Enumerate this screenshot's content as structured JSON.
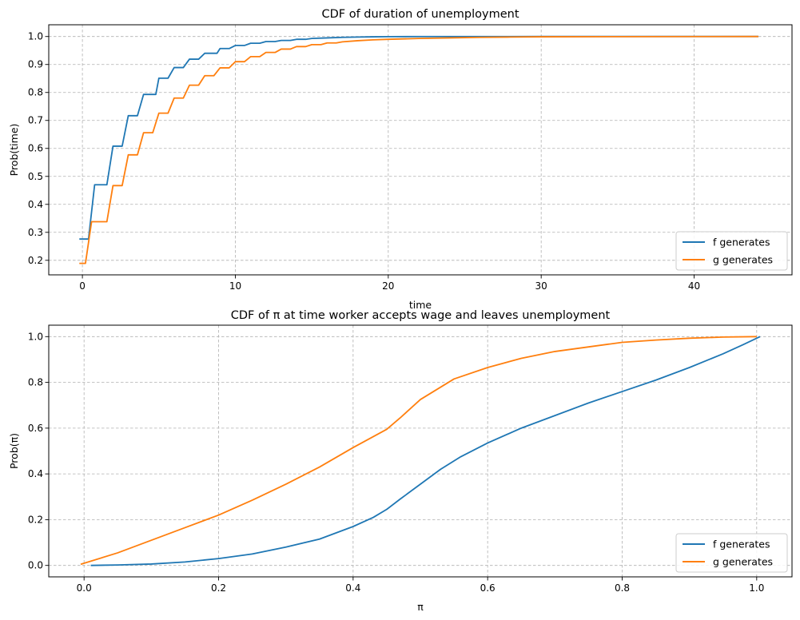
{
  "colors": {
    "f": "#1f77b4",
    "g": "#ff7f0e",
    "grid": "#b0b0b0"
  },
  "chart_data": [
    {
      "type": "line",
      "title": "CDF of duration of unemployment",
      "xlabel": "time",
      "ylabel": "Prob(time)",
      "xlim": [
        -2.2,
        46.4
      ],
      "ylim": [
        0.148,
        1.042
      ],
      "xticks": [
        0,
        10,
        20,
        30,
        40
      ],
      "xtick_labels": [
        "0",
        "10",
        "20",
        "30",
        "40"
      ],
      "yticks": [
        0.2,
        0.3,
        0.4,
        0.5,
        0.6,
        0.7,
        0.8,
        0.9,
        1.0
      ],
      "ytick_labels": [
        "0.2",
        "0.3",
        "0.4",
        "0.5",
        "0.6",
        "0.7",
        "0.8",
        "0.9",
        "1.0"
      ],
      "grid": true,
      "legend_position": "lower-right",
      "series": [
        {
          "name": "f generates",
          "color_key": "f",
          "x": [
            -0.2,
            0.4,
            0.8,
            1.6,
            2.0,
            2.6,
            3.0,
            3.6,
            4.0,
            4.8,
            5.0,
            5.6,
            6.0,
            6.6,
            7.0,
            7.6,
            8.0,
            8.8,
            9.0,
            9.6,
            10.0,
            10.6,
            11.0,
            11.6,
            12.0,
            12.6,
            13.0,
            13.6,
            14.0,
            14.6,
            15.0,
            16.0,
            17.0,
            18.0,
            19.0,
            20.0,
            22.0,
            25.0,
            30.0,
            35.0,
            40.0,
            44.2
          ],
          "y": [
            0.276,
            0.276,
            0.47,
            0.47,
            0.608,
            0.608,
            0.717,
            0.717,
            0.793,
            0.793,
            0.851,
            0.851,
            0.889,
            0.889,
            0.919,
            0.919,
            0.94,
            0.94,
            0.957,
            0.957,
            0.968,
            0.968,
            0.976,
            0.976,
            0.982,
            0.982,
            0.986,
            0.986,
            0.99,
            0.99,
            0.993,
            0.995,
            0.997,
            0.998,
            0.999,
            0.9995,
            0.9998,
            0.9999,
            1.0,
            1.0,
            1.0,
            1.0
          ]
        },
        {
          "name": "g generates",
          "color_key": "g",
          "x": [
            -0.2,
            0.2,
            0.6,
            1.6,
            2.0,
            2.6,
            3.0,
            3.6,
            4.0,
            4.6,
            5.0,
            5.6,
            6.0,
            6.6,
            7.0,
            7.6,
            8.0,
            8.6,
            9.0,
            9.6,
            10.0,
            10.6,
            11.0,
            11.6,
            12.0,
            12.6,
            13.0,
            13.6,
            14.0,
            14.6,
            15.0,
            15.6,
            16.0,
            16.6,
            17.0,
            18.0,
            19.0,
            20.0,
            22.0,
            24.0,
            26.0,
            28.0,
            30.0,
            35.0,
            40.0,
            44.2
          ],
          "y": [
            0.189,
            0.189,
            0.338,
            0.338,
            0.467,
            0.467,
            0.577,
            0.577,
            0.656,
            0.656,
            0.726,
            0.726,
            0.78,
            0.78,
            0.826,
            0.826,
            0.86,
            0.86,
            0.888,
            0.888,
            0.91,
            0.91,
            0.928,
            0.928,
            0.943,
            0.943,
            0.955,
            0.955,
            0.964,
            0.964,
            0.971,
            0.971,
            0.977,
            0.977,
            0.981,
            0.985,
            0.988,
            0.99,
            0.993,
            0.995,
            0.997,
            0.998,
            0.999,
            0.9995,
            0.9998,
            1.0
          ]
        }
      ]
    },
    {
      "type": "line",
      "title": "CDF of π at time worker accepts wage and leaves unemployment",
      "xlabel": "π",
      "ylabel": "Prob(π)",
      "xlim": [
        -0.0525,
        1.0525
      ],
      "ylim": [
        -0.05,
        1.05
      ],
      "xticks": [
        0.0,
        0.2,
        0.4,
        0.6,
        0.8,
        1.0
      ],
      "xtick_labels": [
        "0.0",
        "0.2",
        "0.4",
        "0.6",
        "0.8",
        "1.0"
      ],
      "yticks": [
        0.0,
        0.2,
        0.4,
        0.6,
        0.8,
        1.0
      ],
      "ytick_labels": [
        "0.0",
        "0.2",
        "0.4",
        "0.6",
        "0.8",
        "1.0"
      ],
      "grid": true,
      "legend_position": "lower-right",
      "series": [
        {
          "name": "f generates",
          "color_key": "f",
          "x": [
            0.01,
            0.05,
            0.1,
            0.15,
            0.2,
            0.25,
            0.3,
            0.35,
            0.4,
            0.43,
            0.45,
            0.47,
            0.5,
            0.53,
            0.56,
            0.6,
            0.65,
            0.7,
            0.75,
            0.8,
            0.85,
            0.9,
            0.95,
            0.98,
            1.005
          ],
          "y": [
            0.0,
            0.002,
            0.006,
            0.015,
            0.03,
            0.05,
            0.08,
            0.115,
            0.17,
            0.21,
            0.245,
            0.29,
            0.355,
            0.42,
            0.475,
            0.535,
            0.6,
            0.655,
            0.71,
            0.76,
            0.81,
            0.865,
            0.925,
            0.965,
            1.0
          ]
        },
        {
          "name": "g generates",
          "color_key": "g",
          "x": [
            -0.005,
            0.05,
            0.1,
            0.15,
            0.2,
            0.25,
            0.3,
            0.35,
            0.4,
            0.45,
            0.47,
            0.5,
            0.55,
            0.6,
            0.65,
            0.7,
            0.75,
            0.8,
            0.85,
            0.9,
            0.95,
            1.0
          ],
          "y": [
            0.005,
            0.055,
            0.11,
            0.165,
            0.22,
            0.285,
            0.355,
            0.43,
            0.515,
            0.595,
            0.645,
            0.725,
            0.815,
            0.865,
            0.905,
            0.935,
            0.955,
            0.975,
            0.985,
            0.993,
            0.998,
            1.0
          ]
        }
      ]
    }
  ]
}
